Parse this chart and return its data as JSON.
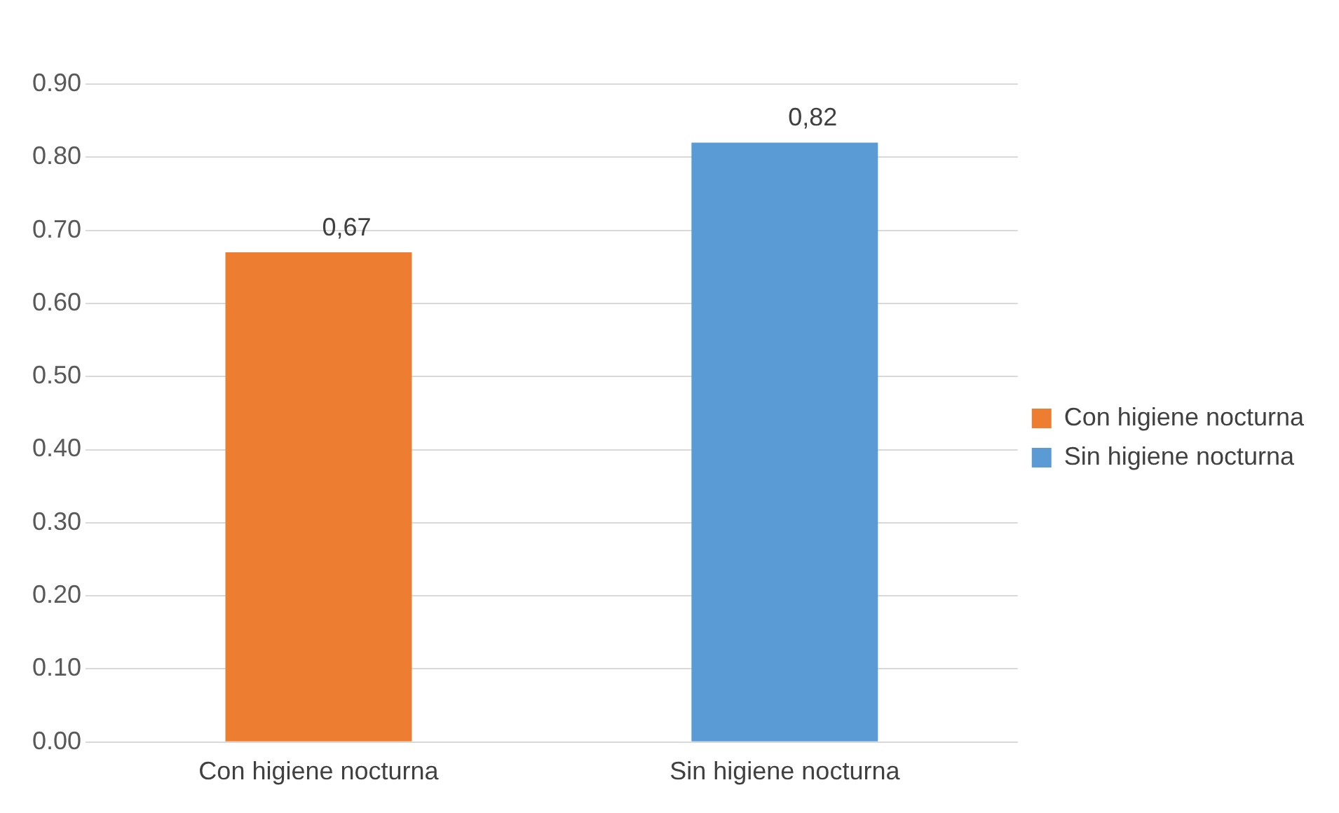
{
  "chart_data": {
    "type": "bar",
    "categories": [
      "Con higiene nocturna",
      "Sin higiene nocturna"
    ],
    "series": [
      {
        "name": "Con higiene nocturna",
        "color": "#ed7d31",
        "values": [
          0.67,
          null
        ],
        "value_labels": [
          "0,67",
          null
        ]
      },
      {
        "name": "Sin higiene nocturna",
        "color": "#5b9bd5",
        "values": [
          null,
          0.82
        ],
        "value_labels": [
          null,
          "0,82"
        ]
      }
    ],
    "ylim": [
      0,
      0.9
    ],
    "yticks": [
      {
        "value": 0,
        "label": "0.00"
      },
      {
        "value": 0.1,
        "label": "0.10"
      },
      {
        "value": 0.2,
        "label": "0.20"
      },
      {
        "value": 0.3,
        "label": "0.30"
      },
      {
        "value": 0.4,
        "label": "0.40"
      },
      {
        "value": 0.5,
        "label": "0.50"
      },
      {
        "value": 0.6,
        "label": "0.60"
      },
      {
        "value": 0.7,
        "label": "0.70"
      },
      {
        "value": 0.8,
        "label": "0.80"
      },
      {
        "value": 0.9,
        "label": "0.90"
      }
    ],
    "grid": "y",
    "legend": "right"
  }
}
